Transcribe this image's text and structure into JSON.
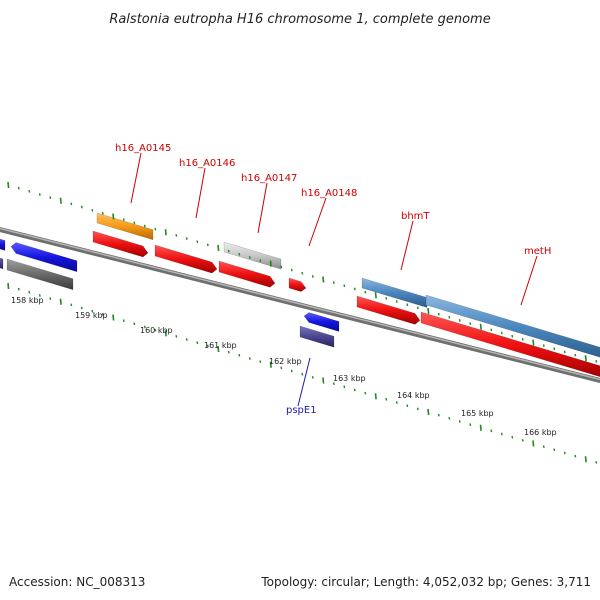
{
  "title": "Ralstonia eutropha H16 chromosome 1, complete genome",
  "footer": {
    "accession": "Accession: NC_008313",
    "summary": "Topology: circular; Length: 4,052,032 bp; Genes: 3,711"
  },
  "tick_labels": [
    "158 kbp",
    "159 kbp",
    "160 kbp",
    "161 kbp",
    "162 kbp",
    "163 kbp",
    "164 kbp",
    "165 kbp",
    "166 kbp"
  ],
  "gene_labels": [
    {
      "name": "h16_A0145",
      "color": "#cc0000"
    },
    {
      "name": "h16_A0146",
      "color": "#cc0000"
    },
    {
      "name": "h16_A0147",
      "color": "#cc0000"
    },
    {
      "name": "h16_A0148",
      "color": "#cc0000"
    },
    {
      "name": "bhmT",
      "color": "#cc0000"
    },
    {
      "name": "metH",
      "color": "#cc0000"
    },
    {
      "name": "pspE1",
      "color": "#1a1aa6"
    }
  ],
  "colors": {
    "cds_red": "#ee1111",
    "gene_blue": "#1515e0",
    "orange": "#f59a16",
    "light_gray": "#c8c8c8",
    "dark_gray": "#6a6a6a",
    "steel_blue": "#4a86be",
    "slate": "#4a4690",
    "backbone": "#8a8a8a",
    "tick_green": "#228b22"
  }
}
